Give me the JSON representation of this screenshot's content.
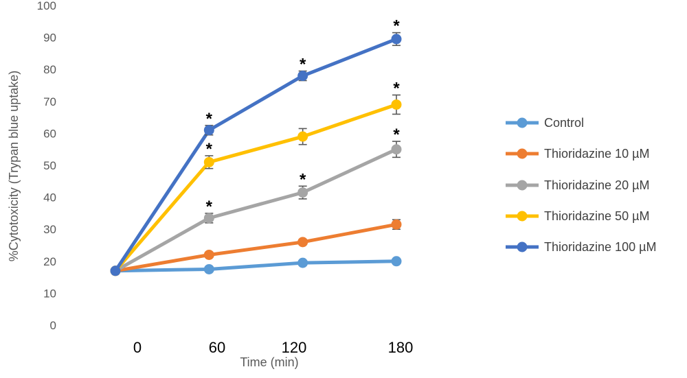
{
  "colors": {
    "control": "#5B9BD5",
    "thio10": "#ED7D31",
    "thio20": "#A5A5A5",
    "thio50": "#FFC000",
    "thio100": "#4472C4",
    "error_bar": "#595959"
  },
  "chart_data": {
    "type": "line",
    "xlabel": "Time (min)",
    "ylabel": "%Cytotoxicity (Trypan blue uptake)",
    "x": [
      0,
      60,
      120,
      180
    ],
    "xtick_labels": [
      "0",
      "60",
      "120",
      "180"
    ],
    "ylim": [
      0,
      100
    ],
    "yticks": [
      0,
      10,
      20,
      30,
      40,
      50,
      60,
      70,
      80,
      90,
      100
    ],
    "grid": false,
    "legend_position": "right",
    "significance_marker": "*",
    "series": [
      {
        "name": "Control",
        "color_key": "control",
        "values": [
          17,
          17.5,
          19.5,
          20
        ],
        "errors": [
          0,
          0.5,
          0.6,
          0.6
        ],
        "significant": [
          false,
          false,
          false,
          false
        ]
      },
      {
        "name": "Thioridazine 10 µM",
        "color_key": "thio10",
        "values": [
          17,
          22,
          26,
          31.5
        ],
        "errors": [
          0,
          0.6,
          0.8,
          1.5
        ],
        "significant": [
          false,
          false,
          false,
          false
        ]
      },
      {
        "name": "Thioridazine 20 µM",
        "color_key": "thio20",
        "values": [
          17,
          33.5,
          41.5,
          55
        ],
        "errors": [
          0,
          1.5,
          2,
          2.5
        ],
        "significant": [
          false,
          true,
          true,
          true
        ]
      },
      {
        "name": "Thioridazine 50 µM",
        "color_key": "thio50",
        "values": [
          17,
          51,
          59,
          69
        ],
        "errors": [
          0,
          2,
          2.5,
          3
        ],
        "significant": [
          false,
          true,
          false,
          true
        ]
      },
      {
        "name": "Thioridazine 100 µM",
        "color_key": "thio100",
        "values": [
          17,
          61,
          78,
          89.5
        ],
        "errors": [
          0,
          1.5,
          1.5,
          2
        ],
        "significant": [
          false,
          true,
          true,
          true
        ]
      }
    ]
  }
}
